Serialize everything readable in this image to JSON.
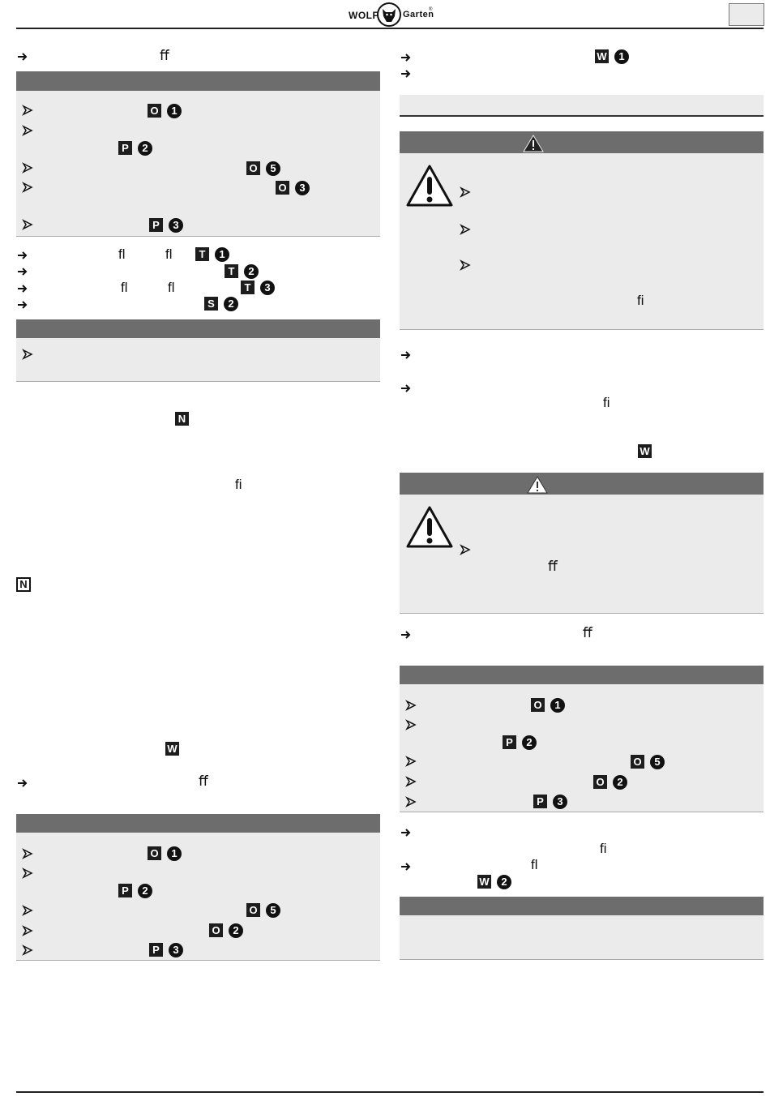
{
  "header": {
    "logo_left": "WOLF",
    "logo_right": "Garten",
    "logo_mark": "®"
  },
  "codes": {
    "O": "O",
    "P": "P",
    "T": "T",
    "S": "S",
    "N": "N",
    "W": "W"
  },
  "numbers": {
    "n1": "1",
    "n2": "2",
    "n3": "3",
    "n5": "5"
  },
  "ligatures": {
    "ff": "ﬀ",
    "fl": "ﬂ",
    "fi": "ﬁ"
  },
  "icons": {
    "arrow": "arrow-right-icon",
    "bullet": "arrowhead-bullet-icon",
    "warning": "warning-triangle-icon",
    "logo": "wolf-head-logo-icon"
  },
  "colors": {
    "box_header": "#6d6d6d",
    "box_body": "#ebebeb",
    "badge": "#1d1d1d"
  }
}
